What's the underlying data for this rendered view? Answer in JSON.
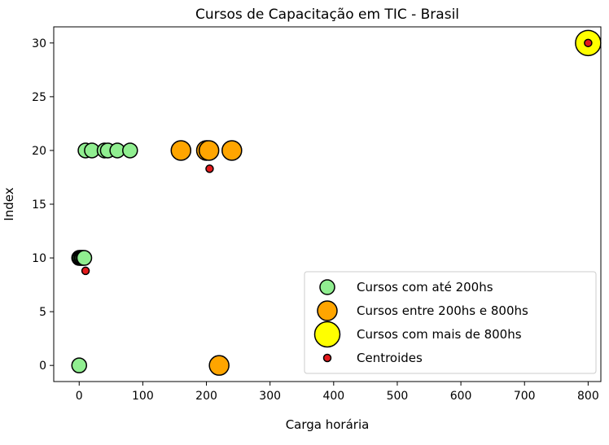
{
  "chart_data": {
    "type": "scatter",
    "title": "Cursos de Capacitação em TIC - Brasil",
    "xlabel": "Carga horária",
    "ylabel": "Index",
    "xlim": [
      -40,
      820
    ],
    "ylim": [
      -1.5,
      31.5
    ],
    "xticks": [
      0,
      100,
      200,
      300,
      400,
      500,
      600,
      700,
      800
    ],
    "yticks": [
      0,
      5,
      10,
      15,
      20,
      25,
      30
    ],
    "grid": false,
    "legend_position": "lower right",
    "series": [
      {
        "name": "Cursos com até 200hs",
        "color": "#90ee90",
        "marker_size": "small",
        "points": [
          {
            "x": 0,
            "y": 0
          },
          {
            "x": 0,
            "y": 10
          },
          {
            "x": 2,
            "y": 10
          },
          {
            "x": 4,
            "y": 10
          },
          {
            "x": 6,
            "y": 10
          },
          {
            "x": 8,
            "y": 10
          },
          {
            "x": 10,
            "y": 20
          },
          {
            "x": 20,
            "y": 20
          },
          {
            "x": 40,
            "y": 20
          },
          {
            "x": 45,
            "y": 20
          },
          {
            "x": 60,
            "y": 20
          },
          {
            "x": 80,
            "y": 20
          }
        ]
      },
      {
        "name": "Cursos entre 200hs e 800hs",
        "color": "#ffa500",
        "marker_size": "medium",
        "points": [
          {
            "x": 160,
            "y": 20
          },
          {
            "x": 200,
            "y": 20
          },
          {
            "x": 204,
            "y": 20
          },
          {
            "x": 240,
            "y": 20
          },
          {
            "x": 220,
            "y": 0
          }
        ]
      },
      {
        "name": "Cursos com mais de 800hs",
        "color": "#ffff00",
        "marker_size": "large",
        "points": [
          {
            "x": 800,
            "y": 30
          }
        ]
      },
      {
        "name": "Centroides",
        "color": "#e31a1c",
        "marker_size": "tiny",
        "points": [
          {
            "x": 10,
            "y": 8.8
          },
          {
            "x": 205,
            "y": 18.3
          },
          {
            "x": 800,
            "y": 30
          }
        ]
      }
    ]
  }
}
